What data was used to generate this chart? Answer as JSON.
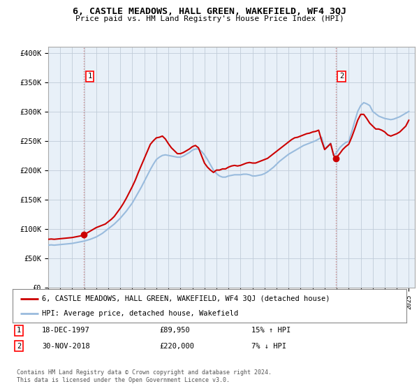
{
  "title": "6, CASTLE MEADOWS, HALL GREEN, WAKEFIELD, WF4 3QJ",
  "subtitle": "Price paid vs. HM Land Registry's House Price Index (HPI)",
  "ylabel_ticks": [
    "£0",
    "£50K",
    "£100K",
    "£150K",
    "£200K",
    "£250K",
    "£300K",
    "£350K",
    "£400K"
  ],
  "ytick_vals": [
    0,
    50000,
    100000,
    150000,
    200000,
    250000,
    300000,
    350000,
    400000
  ],
  "ylim": [
    0,
    410000
  ],
  "xlim_start": 1995.0,
  "xlim_end": 2025.5,
  "xtick_years": [
    1995,
    1996,
    1997,
    1998,
    1999,
    2000,
    2001,
    2002,
    2003,
    2004,
    2005,
    2006,
    2007,
    2008,
    2009,
    2010,
    2011,
    2012,
    2013,
    2014,
    2015,
    2016,
    2017,
    2018,
    2019,
    2020,
    2021,
    2022,
    2023,
    2024,
    2025
  ],
  "transaction1": {
    "label": "1",
    "date": "18-DEC-1997",
    "price": 89950,
    "x": 1997.97,
    "hpi_text": "15% ↑ HPI"
  },
  "transaction2": {
    "label": "2",
    "date": "30-NOV-2018",
    "price": 220000,
    "x": 2018.92,
    "hpi_text": "7% ↓ HPI"
  },
  "red_line_color": "#cc0000",
  "blue_line_color": "#99bbdd",
  "dashed_line_color": "#cc8888",
  "chart_bg_color": "#e8f0f8",
  "bg_color": "#ffffff",
  "grid_color": "#c0ccd8",
  "legend_label_red": "6, CASTLE MEADOWS, HALL GREEN, WAKEFIELD, WF4 3QJ (detached house)",
  "legend_label_blue": "HPI: Average price, detached house, Wakefield",
  "footer": "Contains HM Land Registry data © Crown copyright and database right 2024.\nThis data is licensed under the Open Government Licence v3.0.",
  "hpi_x_values": [
    1995.0,
    1995.25,
    1995.5,
    1995.75,
    1996.0,
    1996.25,
    1996.5,
    1996.75,
    1997.0,
    1997.25,
    1997.5,
    1997.75,
    1998.0,
    1998.25,
    1998.5,
    1998.75,
    1999.0,
    1999.25,
    1999.5,
    1999.75,
    2000.0,
    2000.25,
    2000.5,
    2000.75,
    2001.0,
    2001.25,
    2001.5,
    2001.75,
    2002.0,
    2002.25,
    2002.5,
    2002.75,
    2003.0,
    2003.25,
    2003.5,
    2003.75,
    2004.0,
    2004.25,
    2004.5,
    2004.75,
    2005.0,
    2005.25,
    2005.5,
    2005.75,
    2006.0,
    2006.25,
    2006.5,
    2006.75,
    2007.0,
    2007.25,
    2007.5,
    2007.75,
    2008.0,
    2008.25,
    2008.5,
    2008.75,
    2009.0,
    2009.25,
    2009.5,
    2009.75,
    2010.0,
    2010.25,
    2010.5,
    2010.75,
    2011.0,
    2011.25,
    2011.5,
    2011.75,
    2012.0,
    2012.25,
    2012.5,
    2012.75,
    2013.0,
    2013.25,
    2013.5,
    2013.75,
    2014.0,
    2014.25,
    2014.5,
    2014.75,
    2015.0,
    2015.25,
    2015.5,
    2015.75,
    2016.0,
    2016.25,
    2016.5,
    2016.75,
    2017.0,
    2017.25,
    2017.5,
    2017.75,
    2018.0,
    2018.25,
    2018.5,
    2018.75,
    2019.0,
    2019.25,
    2019.5,
    2019.75,
    2020.0,
    2020.25,
    2020.5,
    2020.75,
    2021.0,
    2021.25,
    2021.5,
    2021.75,
    2022.0,
    2022.25,
    2022.5,
    2022.75,
    2023.0,
    2023.25,
    2023.5,
    2023.75,
    2024.0,
    2024.25,
    2024.5,
    2024.75,
    2025.0
  ],
  "hpi_y_values": [
    72000,
    72500,
    72000,
    72500,
    73000,
    73500,
    74000,
    74500,
    75000,
    76000,
    77000,
    78000,
    79000,
    80500,
    82000,
    84000,
    86000,
    89000,
    92000,
    96000,
    100000,
    104000,
    108000,
    113000,
    118000,
    124000,
    130000,
    137000,
    144000,
    153000,
    162000,
    171000,
    181000,
    191000,
    201000,
    210000,
    218000,
    222000,
    225000,
    226000,
    225000,
    224000,
    223000,
    222000,
    222000,
    224000,
    227000,
    230000,
    234000,
    236000,
    236000,
    232000,
    226000,
    218000,
    209000,
    200000,
    194000,
    190000,
    188000,
    188000,
    190000,
    191000,
    192000,
    192000,
    192000,
    193000,
    193000,
    192000,
    190000,
    190000,
    191000,
    192000,
    194000,
    197000,
    201000,
    205000,
    210000,
    215000,
    219000,
    223000,
    227000,
    230000,
    233000,
    236000,
    239000,
    242000,
    244000,
    246000,
    248000,
    250000,
    253000,
    256000,
    236000,
    241000,
    246000,
    225000,
    230000,
    238000,
    243000,
    247000,
    249000,
    265000,
    283000,
    300000,
    310000,
    315000,
    313000,
    310000,
    300000,
    296000,
    292000,
    290000,
    288000,
    287000,
    286000,
    287000,
    289000,
    291000,
    294000,
    297000,
    300000
  ],
  "red_x_values": [
    1995.0,
    1995.25,
    1995.5,
    1995.75,
    1996.0,
    1996.25,
    1996.5,
    1996.75,
    1997.0,
    1997.25,
    1997.5,
    1997.75,
    1997.97,
    1998.25,
    1998.5,
    1998.75,
    1999.0,
    1999.25,
    1999.5,
    1999.75,
    2000.0,
    2000.25,
    2000.5,
    2000.75,
    2001.0,
    2001.25,
    2001.5,
    2001.75,
    2002.0,
    2002.25,
    2002.5,
    2002.75,
    2003.0,
    2003.25,
    2003.5,
    2003.75,
    2004.0,
    2004.25,
    2004.5,
    2004.75,
    2005.0,
    2005.25,
    2005.5,
    2005.75,
    2006.0,
    2006.25,
    2006.5,
    2006.75,
    2007.0,
    2007.25,
    2007.5,
    2007.75,
    2008.0,
    2008.25,
    2008.5,
    2008.75,
    2009.0,
    2009.25,
    2009.5,
    2009.75,
    2010.0,
    2010.25,
    2010.5,
    2010.75,
    2011.0,
    2011.25,
    2011.5,
    2011.75,
    2012.0,
    2012.25,
    2012.5,
    2012.75,
    2013.0,
    2013.25,
    2013.5,
    2013.75,
    2014.0,
    2014.25,
    2014.5,
    2014.75,
    2015.0,
    2015.25,
    2015.5,
    2015.75,
    2016.0,
    2016.25,
    2016.5,
    2016.75,
    2017.0,
    2017.25,
    2017.5,
    2017.75,
    2018.0,
    2018.25,
    2018.5,
    2018.75,
    2018.92,
    2019.25,
    2019.5,
    2019.75,
    2020.0,
    2020.25,
    2020.5,
    2020.75,
    2021.0,
    2021.25,
    2021.5,
    2021.75,
    2022.0,
    2022.25,
    2022.5,
    2022.75,
    2023.0,
    2023.25,
    2023.5,
    2023.75,
    2024.0,
    2024.25,
    2024.5,
    2024.75,
    2025.0
  ],
  "red_y_values": [
    82000,
    82500,
    82000,
    82500,
    83000,
    83500,
    84000,
    84500,
    85000,
    86000,
    87000,
    88000,
    89950,
    93000,
    96000,
    99000,
    102000,
    104000,
    106000,
    108000,
    112000,
    116000,
    121000,
    128000,
    135000,
    143000,
    152000,
    162000,
    172000,
    183000,
    196000,
    208000,
    220000,
    232000,
    244000,
    250000,
    255000,
    256000,
    258000,
    253000,
    245000,
    238000,
    233000,
    228000,
    228000,
    230000,
    233000,
    236000,
    240000,
    242000,
    238000,
    225000,
    212000,
    205000,
    200000,
    196000,
    200000,
    200000,
    202000,
    202000,
    205000,
    207000,
    208000,
    207000,
    208000,
    210000,
    212000,
    213000,
    212000,
    212000,
    214000,
    216000,
    218000,
    220000,
    224000,
    228000,
    232000,
    236000,
    240000,
    244000,
    248000,
    252000,
    255000,
    256000,
    258000,
    260000,
    262000,
    263000,
    265000,
    266000,
    268000,
    250000,
    235000,
    240000,
    245000,
    225000,
    220000,
    228000,
    235000,
    240000,
    244000,
    256000,
    270000,
    285000,
    295000,
    295000,
    288000,
    280000,
    275000,
    270000,
    270000,
    268000,
    265000,
    260000,
    258000,
    260000,
    262000,
    265000,
    270000,
    275000,
    285000
  ]
}
